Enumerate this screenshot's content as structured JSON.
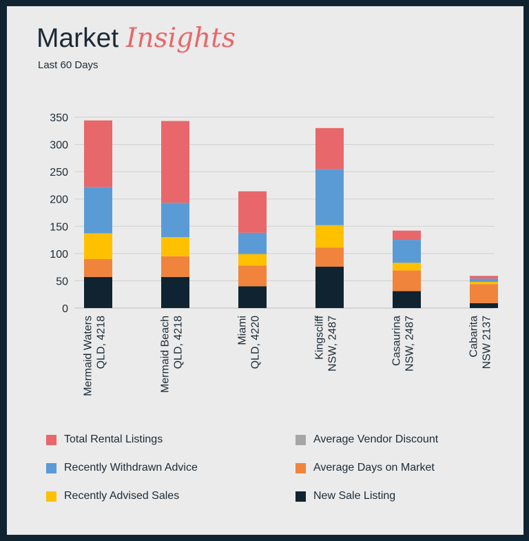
{
  "header": {
    "title_main": "Market",
    "title_accent": "Insights",
    "subtitle": "Last 60 Days"
  },
  "colors": {
    "background": "#0f2430",
    "card": "#ebebeb",
    "accent": "#e8676a"
  },
  "chart_data": {
    "type": "bar",
    "stacked": true,
    "categories": [
      [
        "Mermaid Waters",
        "QLD, 4218"
      ],
      [
        "Mermaid Beach",
        "QLD, 4218"
      ],
      [
        "Miami",
        "QLD, 4220"
      ],
      [
        "Kingscliff",
        "NSW, 2487"
      ],
      [
        "Casaurina",
        "NSW, 2487"
      ],
      [
        "Cabarita",
        "NSW 2137"
      ]
    ],
    "series": [
      {
        "name": "New Sale Listing",
        "color": "#0f2430",
        "values": [
          57,
          57,
          40,
          76,
          31,
          9
        ]
      },
      {
        "name": "Average Days on Market",
        "color": "#f0843c",
        "values": [
          33,
          38,
          38,
          35,
          38,
          35
        ]
      },
      {
        "name": "Average Vendor Discount",
        "color": "#a6a6a6",
        "values": [
          0,
          0,
          0,
          0,
          0,
          0
        ]
      },
      {
        "name": "Recently Advised Sales",
        "color": "#ffc000",
        "values": [
          47,
          35,
          21,
          41,
          14,
          4
        ]
      },
      {
        "name": "Recently Withdrawn Advice",
        "color": "#5b9bd5",
        "values": [
          85,
          63,
          39,
          103,
          42,
          6
        ]
      },
      {
        "name": "Total Rental Listings",
        "color": "#e8676a",
        "values": [
          122,
          150,
          76,
          75,
          17,
          5
        ]
      }
    ],
    "ylim": [
      0,
      350
    ],
    "yticks": [
      0,
      50,
      100,
      150,
      200,
      250,
      300,
      350
    ],
    "grid": true,
    "legend_position": "bottom",
    "legend_order": [
      "Total Rental Listings",
      "Average Vendor Discount",
      "Recently Withdrawn Advice",
      "Average Days on Market",
      "Recently Advised Sales",
      "New Sale Listing"
    ]
  }
}
